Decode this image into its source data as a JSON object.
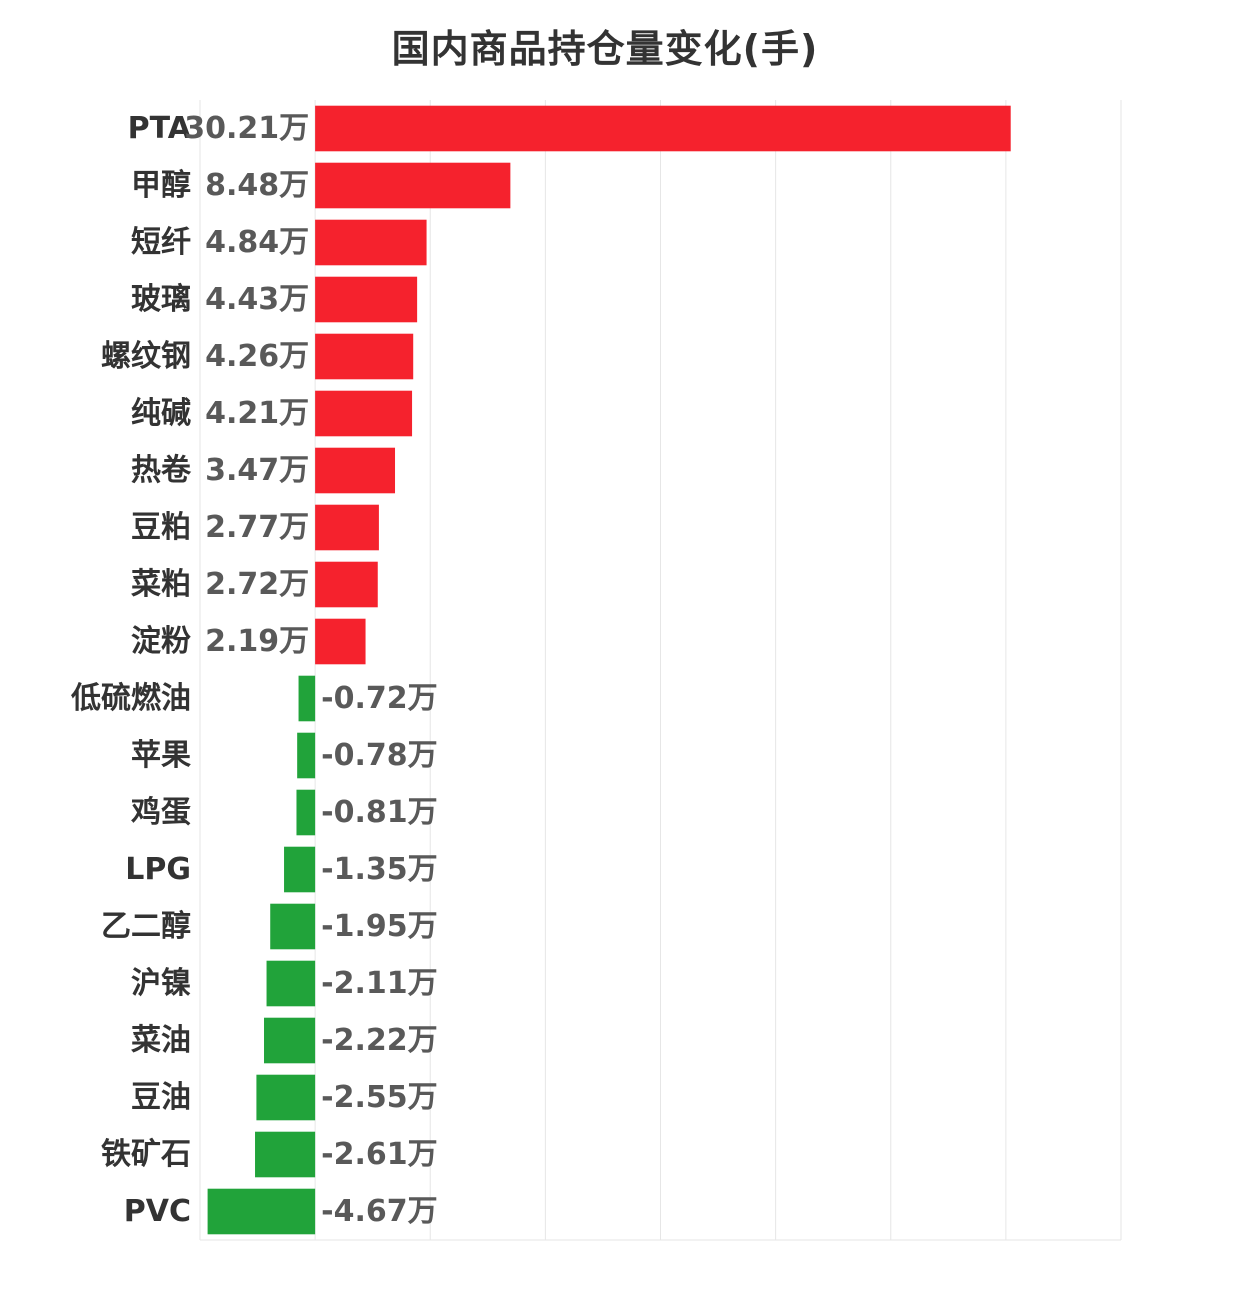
{
  "chart_data": {
    "type": "bar",
    "orientation": "horizontal",
    "title": "国内商品持仓量变化(手)",
    "xlabel": "",
    "ylabel": "",
    "xlim": [
      -5,
      35
    ],
    "grid": true,
    "unit_suffix": "万",
    "categories": [
      "PTA",
      "甲醇",
      "短纤",
      "玻璃",
      "螺纹钢",
      "纯碱",
      "热卷",
      "豆粕",
      "菜粕",
      "淀粉",
      "低硫燃油",
      "苹果",
      "鸡蛋",
      "LPG",
      "乙二醇",
      "沪镍",
      "菜油",
      "豆油",
      "铁矿石",
      "PVC"
    ],
    "values": [
      30.21,
      8.48,
      4.84,
      4.43,
      4.26,
      4.21,
      3.47,
      2.77,
      2.72,
      2.19,
      -0.72,
      -0.78,
      -0.81,
      -1.35,
      -1.95,
      -2.11,
      -2.22,
      -2.55,
      -2.61,
      -4.67
    ],
    "value_labels": [
      "30.21万",
      "8.48万",
      "4.84万",
      "4.43万",
      "4.26万",
      "4.21万",
      "3.47万",
      "2.77万",
      "2.72万",
      "2.19万",
      "-0.72万",
      "-0.78万",
      "-0.81万",
      "-1.35万",
      "-1.95万",
      "-2.11万",
      "-2.22万",
      "-2.55万",
      "-2.61万",
      "-4.67万"
    ],
    "colors": {
      "positive": "#f5222d",
      "negative": "#21a33a",
      "grid": "#e6e6e6"
    }
  }
}
